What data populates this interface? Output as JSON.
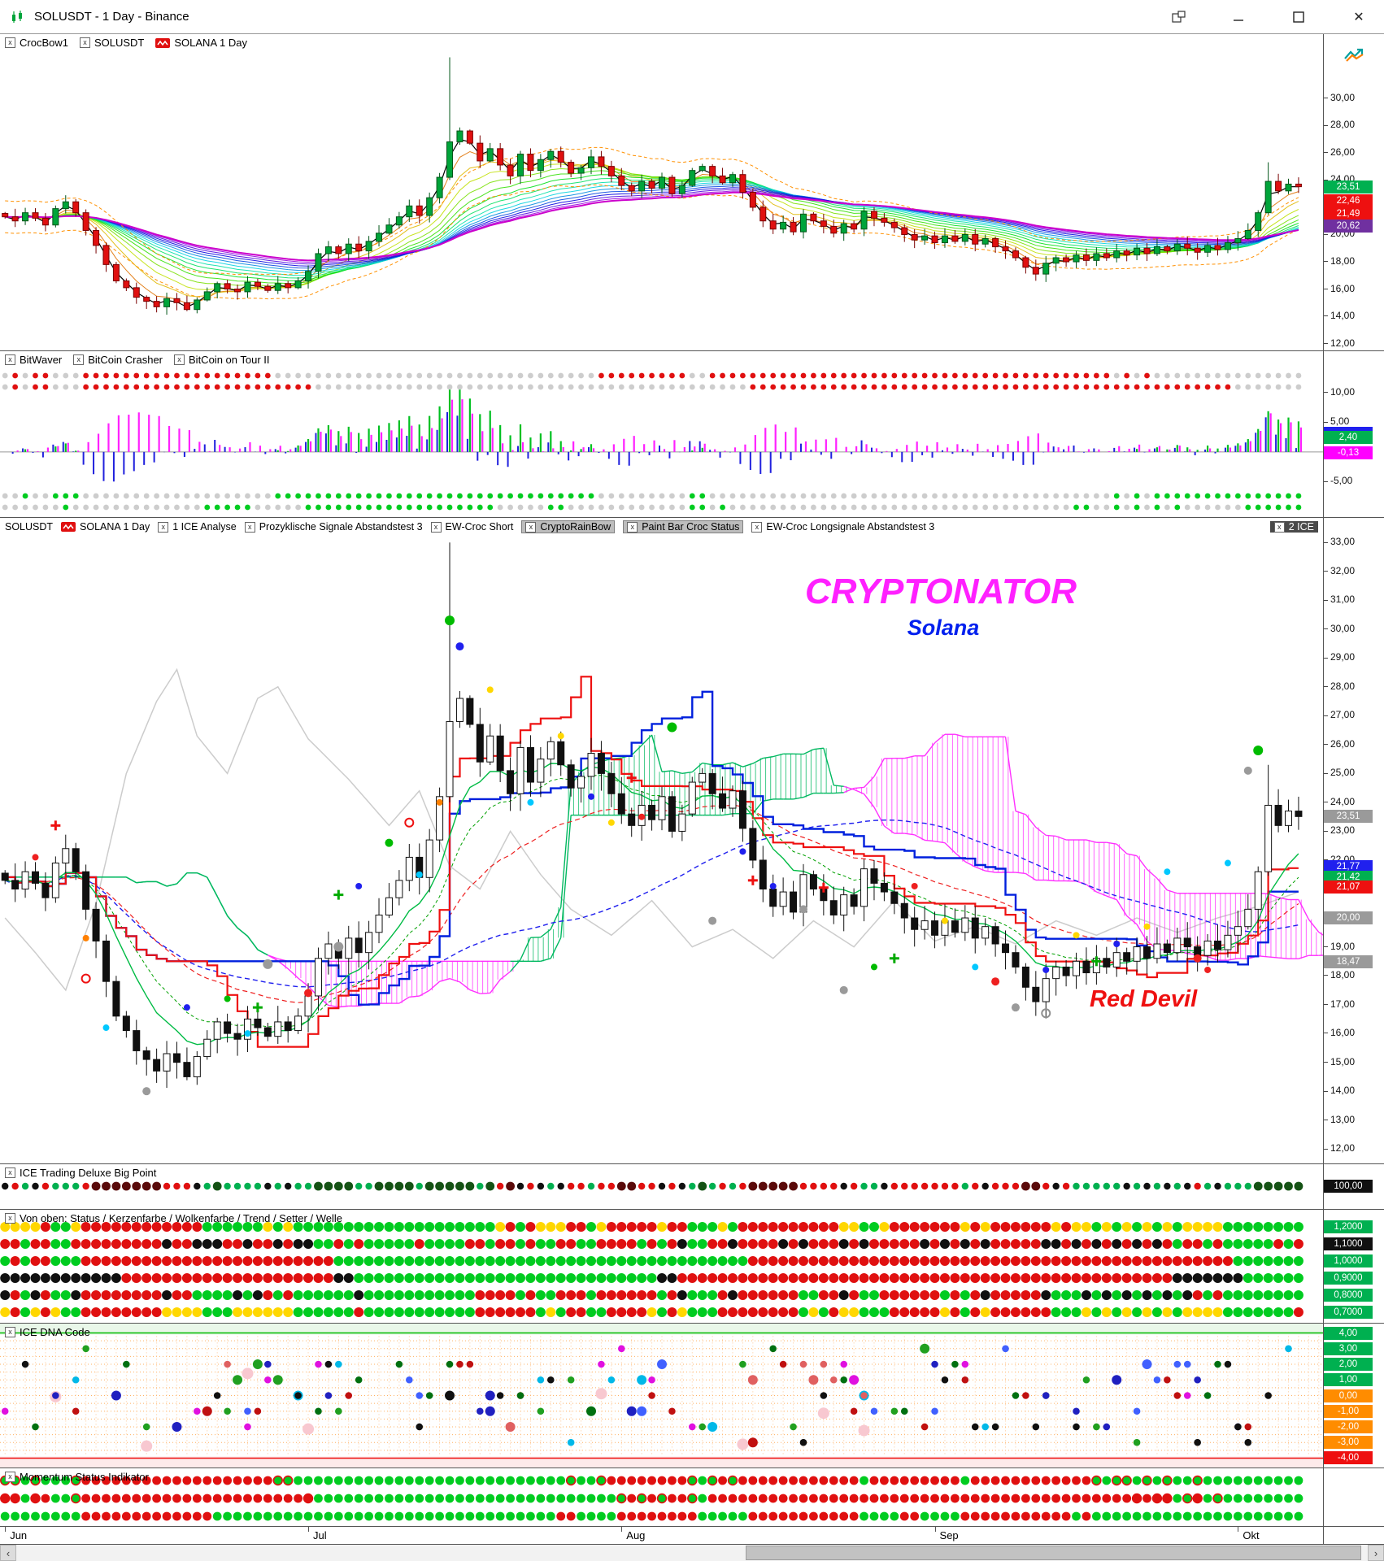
{
  "window": {
    "title": "SOLUSDT - 1 Day - Binance"
  },
  "months": [
    "Jun",
    "Jul",
    "Aug",
    "Sep",
    "Okt"
  ],
  "annotations": {
    "title": "CRYPTONATOR",
    "subtitle": "Solana",
    "note": "Red Devil"
  },
  "panels": {
    "p1": {
      "header": [
        {
          "cb": true,
          "label": "CrocBow1"
        },
        {
          "cb": true,
          "label": "SOLUSDT"
        },
        {
          "icon": true,
          "label": "SOLANA  1 Day"
        }
      ],
      "ticks": [
        "30,00",
        "28,00",
        "26,00",
        "24,00",
        "22,00",
        "20,00",
        "18,00",
        "16,00",
        "14,00",
        "12,00"
      ],
      "badges": [
        {
          "t": "23,51",
          "bg": "#00b050"
        },
        {
          "t": "22,46",
          "bg": "#ee1010"
        },
        {
          "t": "21,49",
          "bg": "#ee1010"
        },
        {
          "t": "20,62",
          "bg": "#7030a0"
        }
      ]
    },
    "p2": {
      "header": [
        {
          "cb": true,
          "label": "BitWaver"
        },
        {
          "cb": true,
          "label": "BitCoin Crasher"
        },
        {
          "cb": true,
          "label": "BitCoin on Tour II"
        }
      ],
      "ticks": [
        "10,00",
        "5,00",
        "-5,00"
      ],
      "badges": [
        {
          "t": "",
          "bg": "#2020ee",
          "v": 3.2
        },
        {
          "t": "2,40",
          "bg": "#00b050"
        },
        {
          "t": "-0,13",
          "bg": "#ff00ff"
        }
      ]
    },
    "p3": {
      "header": [
        {
          "label": "SOLUSDT"
        },
        {
          "icon": true,
          "label": "SOLANA  1 Day"
        },
        {
          "cb": true,
          "label": "1 ICE Analyse"
        },
        {
          "cb": true,
          "label": "Prozyklische Signale Abstandstest 3"
        },
        {
          "cb": true,
          "label": "EW-Croc Short"
        },
        {
          "cb": true,
          "label": "CryptoRainBow",
          "hl": "gray"
        },
        {
          "cb": true,
          "label": "Paint Bar Croc Status",
          "hl": "gray"
        },
        {
          "cb": true,
          "label": "EW-Croc Longsignale Abstandstest 3"
        },
        {
          "cb": true,
          "label": "2 ICE",
          "hl": "dark",
          "right": true
        }
      ],
      "ticks": [
        "33,00",
        "32,00",
        "31,00",
        "30,00",
        "29,00",
        "28,00",
        "27,00",
        "26,00",
        "25,00",
        "24,00",
        "23,00",
        "22,00",
        "21,00",
        "20,00",
        "19,00",
        "18,00",
        "17,00",
        "16,00",
        "15,00",
        "14,00",
        "13,00",
        "12,00"
      ],
      "badges": [
        {
          "t": "23,51",
          "bg": "#9a9a9a"
        },
        {
          "t": "21,77",
          "bg": "#2020ee"
        },
        {
          "t": "21,42",
          "bg": "#00b050"
        },
        {
          "t": "21,07",
          "bg": "#ee1010"
        },
        {
          "t": "20,00",
          "bg": "#9a9a9a"
        },
        {
          "t": "18,47",
          "bg": "#9a9a9a"
        }
      ]
    },
    "p4": {
      "header": [
        {
          "cb": true,
          "label": "ICE Trading Deluxe Big Point"
        }
      ],
      "badges": [
        {
          "t": "100,00",
          "bg": "#101010",
          "v": 0
        }
      ]
    },
    "p5": {
      "header": [
        {
          "cb": true,
          "label": "Von oben: Status / Kerzenfarbe / Wolkenfarbe / Trend / Setter / Welle"
        }
      ],
      "badges": [
        {
          "t": "1,2000",
          "bg": "#00b050"
        },
        {
          "t": "1,1000",
          "bg": "#101010"
        },
        {
          "t": "1,0000",
          "bg": "#00b050"
        },
        {
          "t": "0,9000",
          "bg": "#00b050"
        },
        {
          "t": "0,8000",
          "bg": "#00b050"
        },
        {
          "t": "0,7000",
          "bg": "#00b050"
        }
      ]
    },
    "p6": {
      "header": [
        {
          "cb": true,
          "label": "ICE DNA Code"
        }
      ],
      "badges": [
        {
          "t": "4,00",
          "bg": "#00b050"
        },
        {
          "t": "3,00",
          "bg": "#00b050"
        },
        {
          "t": "2,00",
          "bg": "#00b050"
        },
        {
          "t": "1,00",
          "bg": "#00b050"
        },
        {
          "t": "0,00",
          "bg": "#ff8c00"
        },
        {
          "t": "-1,00",
          "bg": "#ff8c00"
        },
        {
          "t": "-2,00",
          "bg": "#ff8c00"
        },
        {
          "t": "-3,00",
          "bg": "#ff8c00"
        },
        {
          "t": "-4,00",
          "bg": "#ee1010"
        }
      ]
    },
    "p7": {
      "header": [
        {
          "cb": true,
          "label": "Momentum Status Indikator"
        }
      ]
    }
  },
  "chart_data": {
    "type": "candlestick-multi-panel",
    "symbol": "SOLUSDT",
    "timeframe": "1 Day",
    "exchange": "Binance",
    "month_starts": [
      0,
      30,
      61,
      92,
      122
    ],
    "closes": [
      21.3,
      21.0,
      21.6,
      21.2,
      20.7,
      21.9,
      22.4,
      21.6,
      20.3,
      19.2,
      17.8,
      16.6,
      16.1,
      15.4,
      15.1,
      14.7,
      15.3,
      15.0,
      14.5,
      15.2,
      15.8,
      16.4,
      16.0,
      15.8,
      16.5,
      16.2,
      15.9,
      16.4,
      16.1,
      16.6,
      17.3,
      18.6,
      19.1,
      18.6,
      19.3,
      18.8,
      19.5,
      20.1,
      20.7,
      21.3,
      22.1,
      21.4,
      22.7,
      24.2,
      26.8,
      27.6,
      26.7,
      25.4,
      26.3,
      25.1,
      24.3,
      25.9,
      24.7,
      25.5,
      26.1,
      25.3,
      24.5,
      24.9,
      25.7,
      25.0,
      24.3,
      23.6,
      23.2,
      23.9,
      23.4,
      24.2,
      23.0,
      23.6,
      24.7,
      25.0,
      24.3,
      23.8,
      24.4,
      23.1,
      22.0,
      21.0,
      20.4,
      20.9,
      20.2,
      21.5,
      21.0,
      20.6,
      20.1,
      20.8,
      20.4,
      21.7,
      21.2,
      20.9,
      20.5,
      20.0,
      19.6,
      19.9,
      19.4,
      19.9,
      19.5,
      20.0,
      19.3,
      19.7,
      19.1,
      18.8,
      18.3,
      17.6,
      17.1,
      17.9,
      18.3,
      18.0,
      18.5,
      18.1,
      18.6,
      18.3,
      18.8,
      18.5,
      19.0,
      18.6,
      19.1,
      18.8,
      19.3,
      19.0,
      18.7,
      19.2,
      18.9,
      19.4,
      19.7,
      20.3,
      21.6,
      23.9,
      23.2,
      23.7,
      23.51
    ],
    "overlay": [
      [
        0,
        20
      ],
      [
        3,
        18.8
      ],
      [
        6,
        17.5
      ],
      [
        9,
        20.5
      ],
      [
        12,
        25
      ],
      [
        15,
        27.5
      ],
      [
        17,
        28.6
      ],
      [
        19,
        26.3
      ],
      [
        22,
        25
      ],
      [
        25,
        27.6
      ],
      [
        27,
        28
      ],
      [
        30,
        26.2
      ],
      [
        34,
        24.8
      ],
      [
        38,
        23.2
      ],
      [
        41,
        24.4
      ],
      [
        44,
        21.8
      ],
      [
        47,
        21
      ],
      [
        50,
        23
      ],
      [
        53,
        21.5
      ],
      [
        56,
        20.3
      ],
      [
        60,
        19.4
      ],
      [
        64,
        20.6
      ],
      [
        68,
        19
      ],
      [
        72,
        19.6
      ],
      [
        76,
        18.6
      ],
      [
        80,
        19.9
      ],
      [
        84,
        19
      ],
      [
        88,
        20.6
      ],
      [
        92,
        19.2
      ],
      [
        96,
        19.7
      ],
      [
        100,
        19.1
      ],
      [
        104,
        19.9
      ],
      [
        108,
        19.4
      ],
      [
        112,
        20
      ],
      [
        116,
        19.5
      ],
      [
        120,
        20
      ],
      [
        124,
        20.4
      ],
      [
        128,
        20.9
      ]
    ],
    "markers": [
      [
        3,
        22.1,
        "#ee2020",
        4
      ],
      [
        8,
        19.3,
        "#ff8000",
        4
      ],
      [
        10,
        16.2,
        "#00c8ff",
        4
      ],
      [
        14,
        14.0,
        "#9a9a9a",
        5
      ],
      [
        18,
        16.9,
        "#2020ee",
        4
      ],
      [
        22,
        17.2,
        "#00bb00",
        4
      ],
      [
        24,
        16.0,
        "#00c8ff",
        4
      ],
      [
        26,
        18.4,
        "#9a9a9a",
        6
      ],
      [
        30,
        17.4,
        "#ee2020",
        5
      ],
      [
        33,
        19.0,
        "#9a9a9a",
        6
      ],
      [
        35,
        21.1,
        "#2020ee",
        4
      ],
      [
        38,
        22.6,
        "#00bb00",
        5
      ],
      [
        41,
        21.5,
        "#00c8ff",
        4
      ],
      [
        43,
        24.0,
        "#ff8000",
        4
      ],
      [
        44,
        30.3,
        "#00bb00",
        6
      ],
      [
        45,
        29.4,
        "#2020ee",
        5
      ],
      [
        48,
        27.9,
        "#ffd700",
        4
      ],
      [
        52,
        24.0,
        "#00c8ff",
        4
      ],
      [
        55,
        26.3,
        "#ffd700",
        4
      ],
      [
        58,
        24.2,
        "#2020ee",
        4
      ],
      [
        60,
        23.3,
        "#ffd700",
        4
      ],
      [
        63,
        23.5,
        "#ee2020",
        4
      ],
      [
        66,
        26.6,
        "#00bb00",
        6
      ],
      [
        70,
        19.9,
        "#9a9a9a",
        5
      ],
      [
        73,
        22.3,
        "#2020ee",
        4
      ],
      [
        76,
        21.1,
        "#2020ee",
        4
      ],
      [
        79,
        20.3,
        "#9a9a9a",
        5
      ],
      [
        83,
        17.5,
        "#9a9a9a",
        5
      ],
      [
        86,
        18.3,
        "#00bb00",
        4
      ],
      [
        90,
        21.1,
        "#ee2020",
        4
      ],
      [
        93,
        19.9,
        "#ffd700",
        4
      ],
      [
        96,
        18.3,
        "#00c8ff",
        4
      ],
      [
        98,
        17.8,
        "#ee2020",
        5
      ],
      [
        100,
        16.9,
        "#9a9a9a",
        5
      ],
      [
        103,
        18.2,
        "#2020ee",
        4
      ],
      [
        106,
        19.4,
        "#ffd700",
        4
      ],
      [
        110,
        19.1,
        "#2020ee",
        4
      ],
      [
        113,
        19.7,
        "#ffd700",
        4
      ],
      [
        115,
        21.6,
        "#00c8ff",
        4
      ],
      [
        118,
        18.6,
        "#ee2020",
        5
      ],
      [
        119,
        18.2,
        "#ee2020",
        4
      ],
      [
        121,
        21.9,
        "#00c8ff",
        4
      ],
      [
        123,
        25.1,
        "#9a9a9a",
        5
      ],
      [
        124,
        25.8,
        "#00bb00",
        6
      ]
    ],
    "crosses": [
      [
        5,
        23.2,
        "#ee1010"
      ],
      [
        25,
        16.9,
        "#00aa00"
      ],
      [
        33,
        20.8,
        "#00aa00"
      ],
      [
        62,
        24.85,
        "#ee1010"
      ],
      [
        74,
        21.3,
        "#ee1010"
      ],
      [
        81,
        21.05,
        "#ee1010"
      ],
      [
        88,
        18.6,
        "#00aa00"
      ],
      [
        108,
        18.5,
        "#00aa00"
      ]
    ],
    "rings": [
      [
        40,
        23.3,
        "#ee1010"
      ],
      [
        8,
        17.9,
        "#ee1010"
      ],
      [
        103,
        16.7,
        "#909090"
      ]
    ]
  }
}
